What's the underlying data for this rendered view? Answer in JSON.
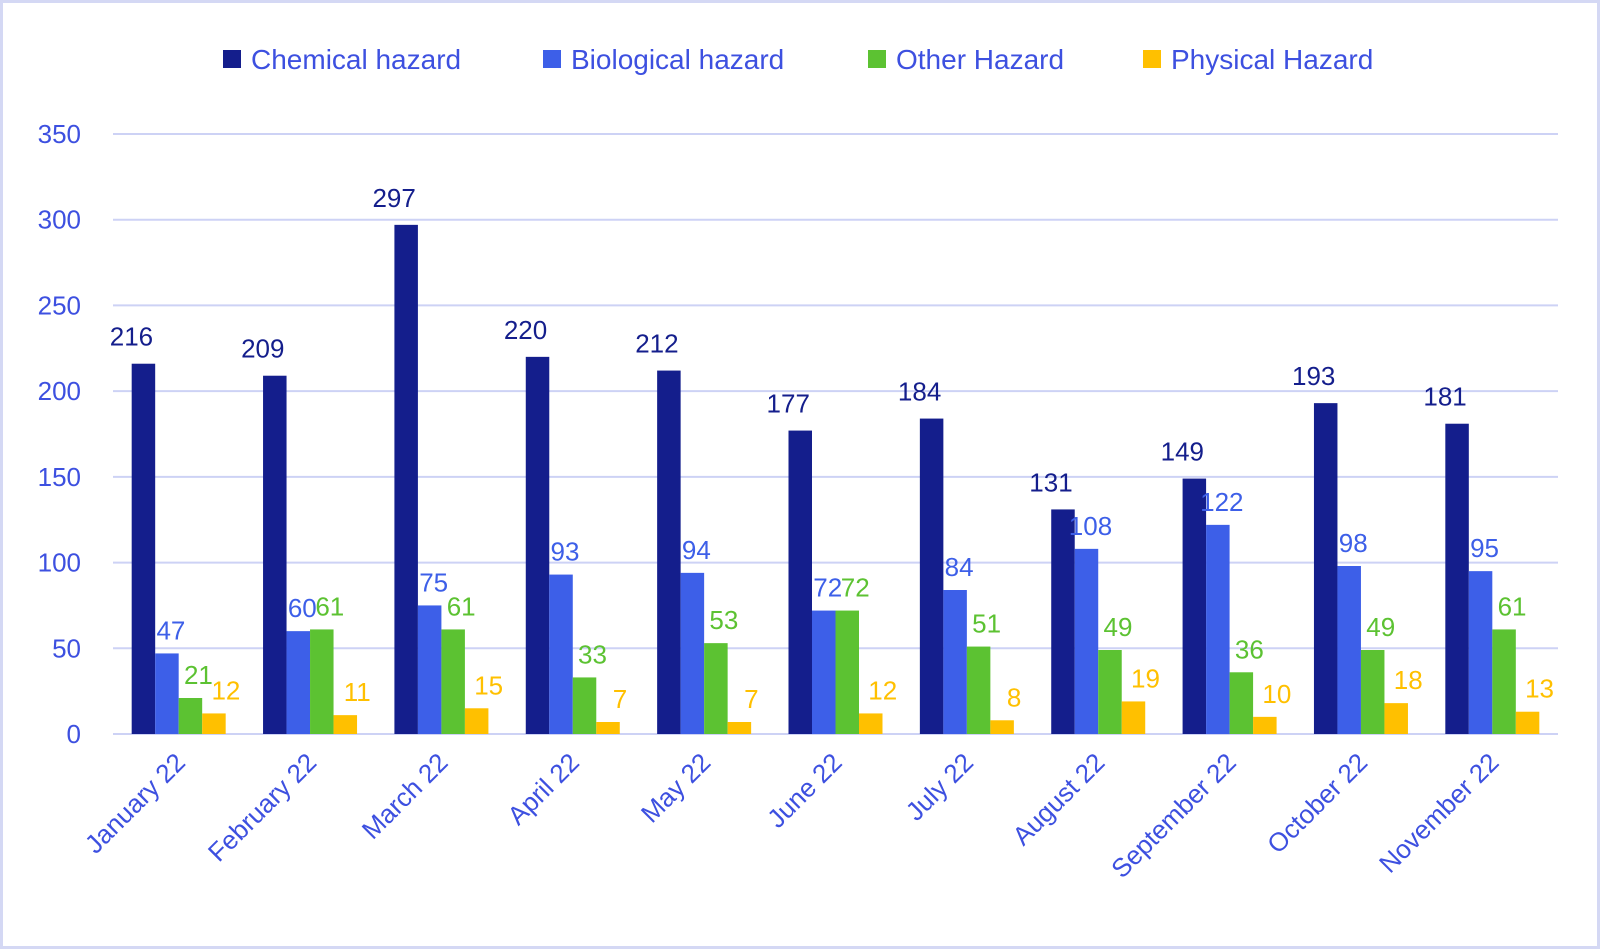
{
  "chart_data": {
    "type": "bar",
    "categories": [
      "January 22",
      "February 22",
      "March 22",
      "April 22",
      "May 22",
      "June 22",
      "July 22",
      "August 22",
      "September 22",
      "October 22",
      "November 22"
    ],
    "series": [
      {
        "name": "Chemical hazard",
        "color": "#141e8c",
        "values": [
          216,
          209,
          297,
          220,
          212,
          177,
          184,
          131,
          149,
          193,
          181
        ]
      },
      {
        "name": "Biological hazard",
        "color": "#3d5fe8",
        "values": [
          47,
          60,
          75,
          93,
          94,
          72,
          84,
          108,
          122,
          98,
          95
        ]
      },
      {
        "name": "Other Hazard",
        "color": "#5cc232",
        "values": [
          21,
          61,
          61,
          33,
          53,
          72,
          51,
          49,
          36,
          49,
          61
        ]
      },
      {
        "name": "Physical Hazard",
        "color": "#ffc000",
        "values": [
          12,
          11,
          15,
          7,
          7,
          12,
          8,
          19,
          10,
          18,
          13
        ]
      }
    ],
    "yticks": [
      "0",
      "50",
      "100",
      "150",
      "200",
      "250",
      "300",
      "350"
    ],
    "ylim": [
      0,
      350
    ],
    "grid": true,
    "legend": "top",
    "label_colors": [
      "#141e8c",
      "#3d5fe8",
      "#5cc232",
      "#ffc000"
    ],
    "axis_text_color": "#3d50e0"
  }
}
